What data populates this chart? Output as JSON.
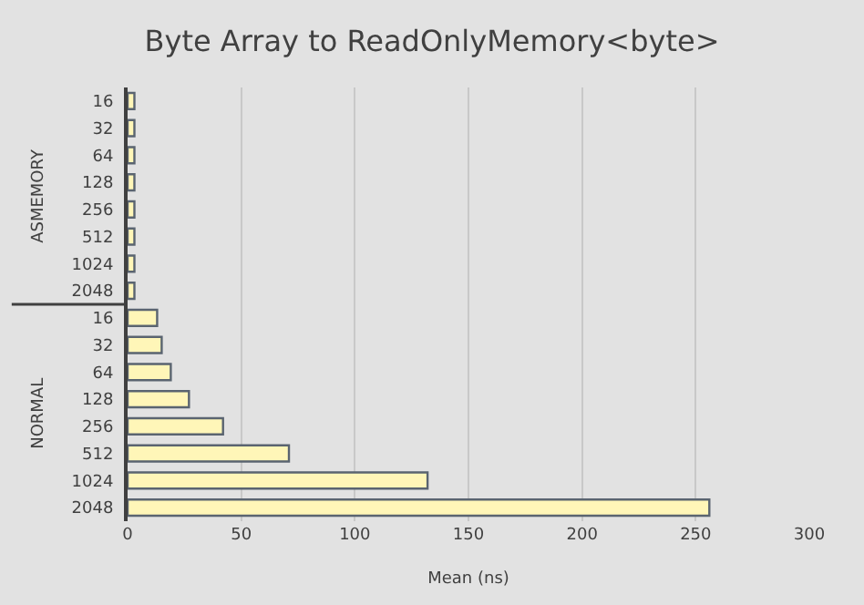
{
  "chart_data": {
    "type": "bar",
    "orientation": "horizontal",
    "title": "Byte Array to ReadOnlyMemory<byte>",
    "xlabel": "Mean (ns)",
    "categories": [
      "16",
      "32",
      "64",
      "128",
      "256",
      "512",
      "1024",
      "2048",
      "16",
      "32",
      "64",
      "128",
      "256",
      "512",
      "1024",
      "2048"
    ],
    "values": [
      3,
      3,
      3,
      3,
      3,
      3,
      3,
      3,
      13,
      15,
      19,
      27,
      42,
      71,
      132,
      256
    ],
    "color": "#fff6b8",
    "xlim": [
      0,
      300
    ],
    "xticks": [
      0,
      50,
      100,
      150,
      200,
      250,
      300
    ],
    "grid": "x",
    "annotations": [
      "ASMEMORY",
      "NORMAL"
    ]
  }
}
